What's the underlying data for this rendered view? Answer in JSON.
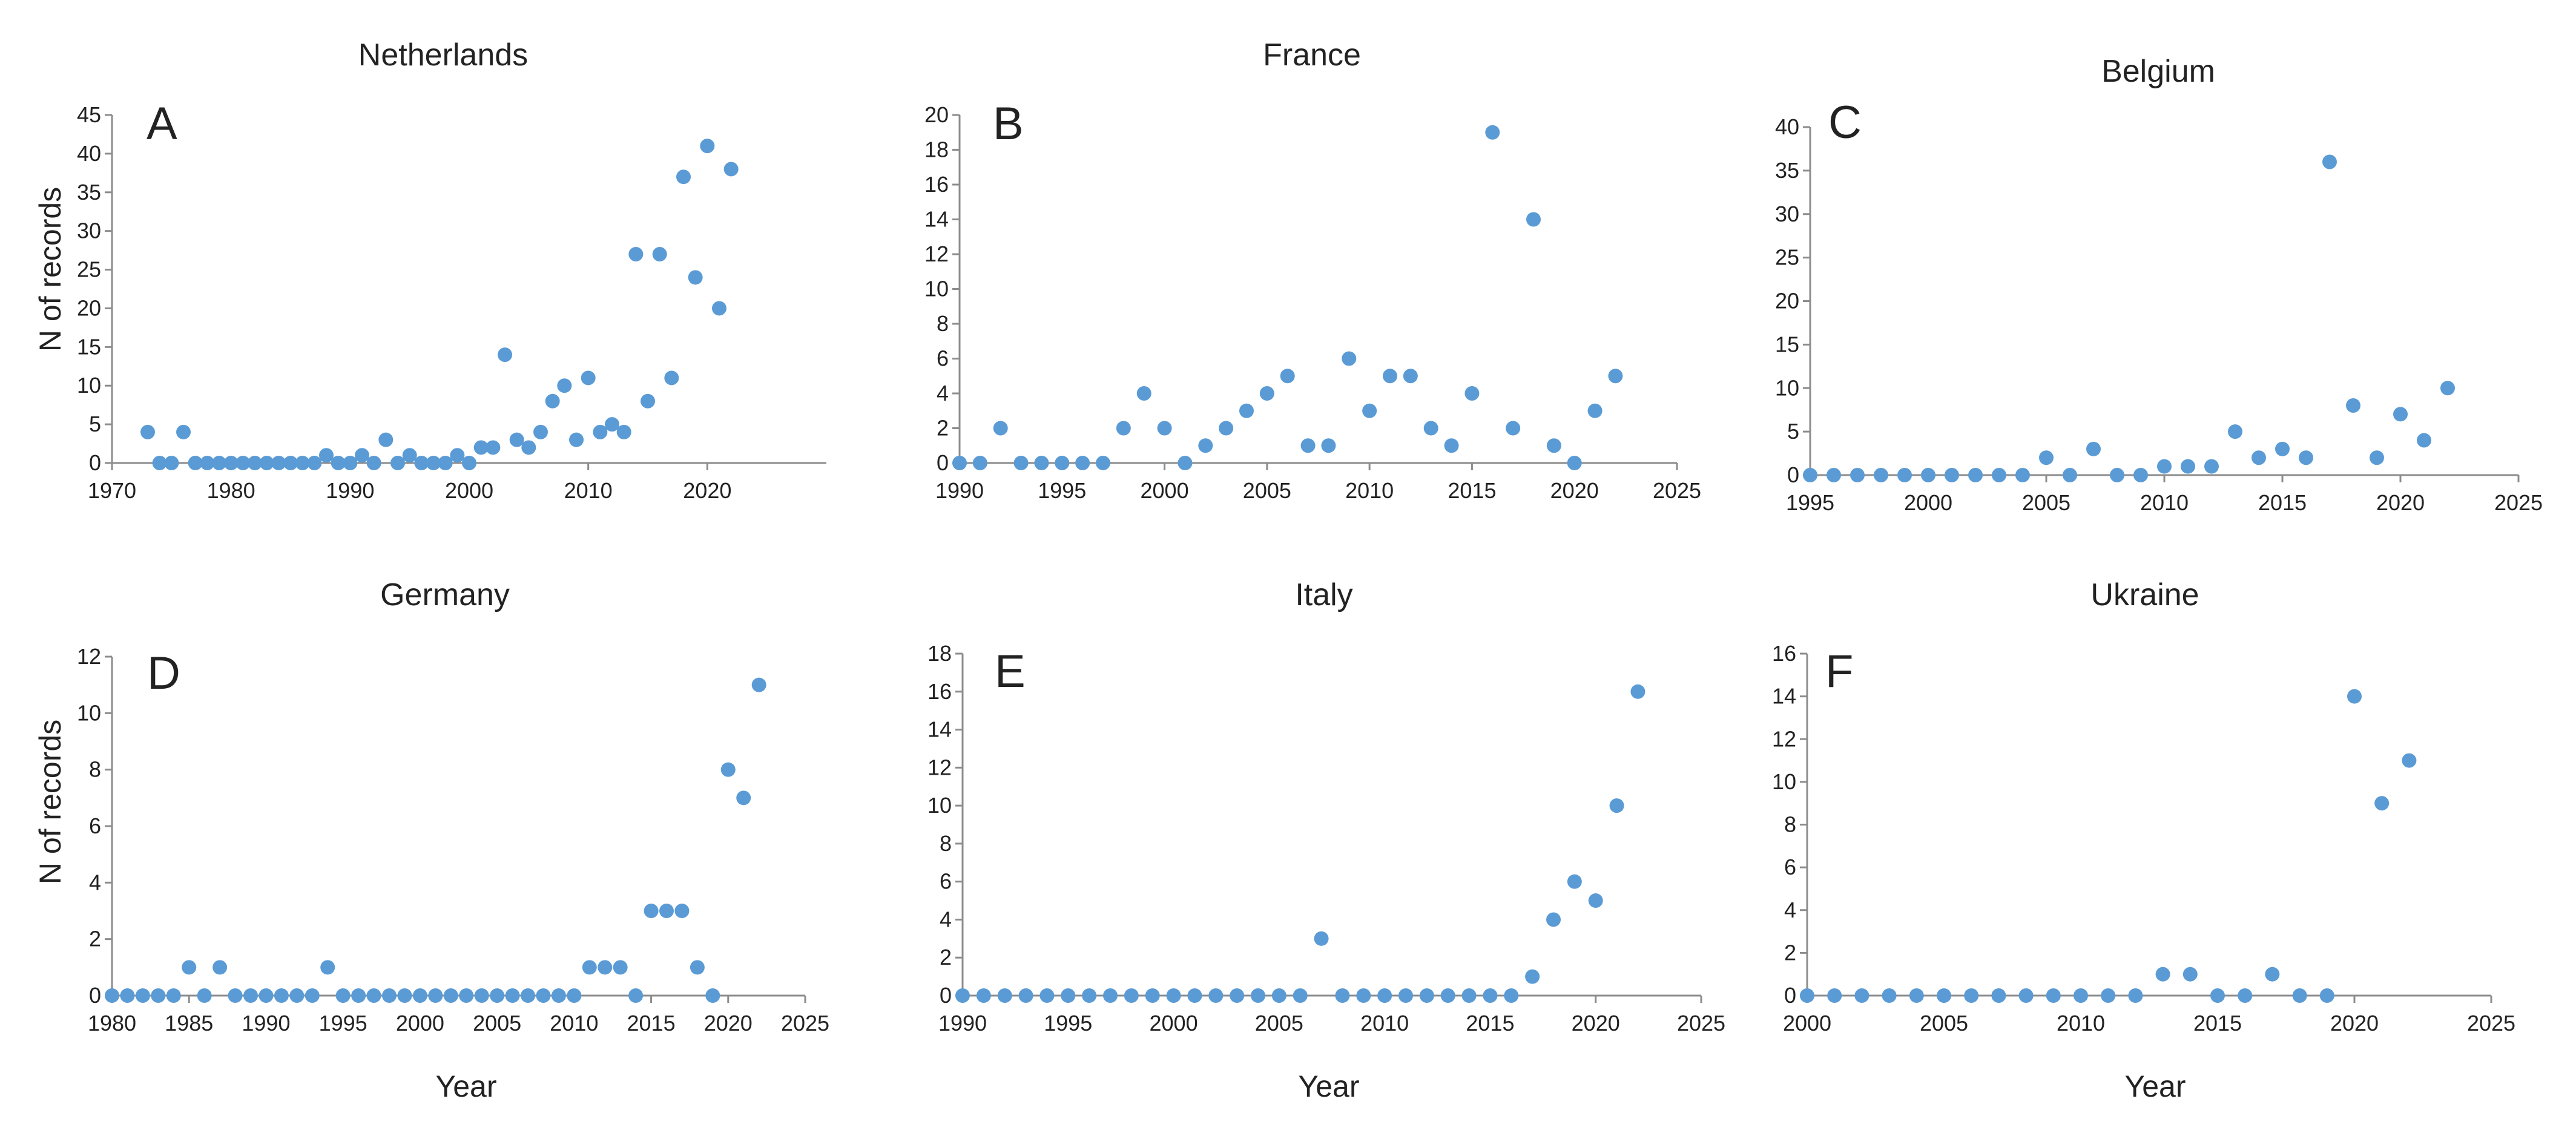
{
  "figure": {
    "y_title": "N of records",
    "x_title": "Year"
  },
  "chart_data": [
    {
      "type": "scatter",
      "panel": "A",
      "title": "Netherlands",
      "xlim": [
        1970,
        2030
      ],
      "xticks": [
        1970,
        1980,
        1990,
        2000,
        2010,
        2020
      ],
      "ylim": [
        0,
        45
      ],
      "yticks": [
        0,
        5,
        10,
        15,
        20,
        25,
        30,
        35,
        40,
        45
      ],
      "color": "#5B9BD5",
      "grid": false,
      "x": [
        1973,
        1974,
        1975,
        1976,
        1977,
        1978,
        1979,
        1980,
        1981,
        1982,
        1983,
        1984,
        1985,
        1986,
        1987,
        1988,
        1989,
        1990,
        1991,
        1992,
        1993,
        1994,
        1995,
        1996,
        1997,
        1998,
        1999,
        2000,
        2001,
        2002,
        2003,
        2004,
        2005,
        2006,
        2007,
        2008,
        2009,
        2010,
        2011,
        2012,
        2013,
        2014,
        2015,
        2016,
        2017,
        2018,
        2019,
        2020,
        2021,
        2022
      ],
      "y": [
        4,
        0,
        0,
        4,
        0,
        0,
        0,
        0,
        0,
        0,
        0,
        0,
        0,
        0,
        0,
        1,
        0,
        0,
        1,
        0,
        3,
        0,
        1,
        0,
        0,
        0,
        1,
        0,
        2,
        2,
        14,
        3,
        2,
        4,
        8,
        10,
        3,
        11,
        4,
        5,
        4,
        27,
        8,
        27,
        11,
        37,
        24,
        41,
        20,
        38
      ]
    },
    {
      "type": "scatter",
      "panel": "B",
      "title": "France",
      "xlim": [
        1990,
        2025
      ],
      "xticks": [
        1990,
        1995,
        2000,
        2005,
        2010,
        2015,
        2020,
        2025
      ],
      "ylim": [
        0,
        20
      ],
      "yticks": [
        0,
        2,
        4,
        6,
        8,
        10,
        12,
        14,
        16,
        18,
        20
      ],
      "color": "#5B9BD5",
      "grid": false,
      "x": [
        1990,
        1991,
        1992,
        1993,
        1994,
        1995,
        1996,
        1997,
        1998,
        1999,
        2000,
        2001,
        2002,
        2003,
        2004,
        2005,
        2006,
        2007,
        2008,
        2009,
        2010,
        2011,
        2012,
        2013,
        2014,
        2015,
        2016,
        2017,
        2018,
        2019,
        2020,
        2021,
        2022
      ],
      "y": [
        0,
        0,
        2,
        0,
        0,
        0,
        0,
        0,
        2,
        4,
        2,
        0,
        1,
        2,
        3,
        4,
        5,
        1,
        1,
        6,
        3,
        5,
        5,
        2,
        1,
        4,
        19,
        2,
        14,
        1,
        0,
        3,
        5
      ]
    },
    {
      "type": "scatter",
      "panel": "C",
      "title": "Belgium",
      "xlim": [
        1995,
        2025
      ],
      "xticks": [
        1995,
        2000,
        2005,
        2010,
        2015,
        2020,
        2025
      ],
      "ylim": [
        0,
        40
      ],
      "yticks": [
        0,
        5,
        10,
        15,
        20,
        25,
        30,
        35,
        40
      ],
      "color": "#5B9BD5",
      "grid": false,
      "x": [
        1995,
        1996,
        1997,
        1998,
        1999,
        2000,
        2001,
        2002,
        2003,
        2004,
        2005,
        2006,
        2007,
        2008,
        2009,
        2010,
        2011,
        2012,
        2013,
        2014,
        2015,
        2016,
        2017,
        2018,
        2019,
        2020,
        2021,
        2022
      ],
      "y": [
        0,
        0,
        0,
        0,
        0,
        0,
        0,
        0,
        0,
        0,
        2,
        0,
        3,
        0,
        0,
        1,
        1,
        1,
        5,
        2,
        3,
        2,
        36,
        8,
        2,
        7,
        4,
        10
      ]
    },
    {
      "type": "scatter",
      "panel": "D",
      "title": "Germany",
      "xlim": [
        1980,
        2025
      ],
      "xticks": [
        1980,
        1985,
        1990,
        1995,
        2000,
        2005,
        2010,
        2015,
        2020,
        2025
      ],
      "ylim": [
        0,
        12
      ],
      "yticks": [
        0,
        2,
        4,
        6,
        8,
        10,
        12
      ],
      "color": "#5B9BD5",
      "grid": false,
      "x": [
        1980,
        1981,
        1982,
        1983,
        1984,
        1985,
        1986,
        1987,
        1988,
        1989,
        1990,
        1991,
        1992,
        1993,
        1994,
        1995,
        1996,
        1997,
        1998,
        1999,
        2000,
        2001,
        2002,
        2003,
        2004,
        2005,
        2006,
        2007,
        2008,
        2009,
        2010,
        2011,
        2012,
        2013,
        2014,
        2015,
        2016,
        2017,
        2018,
        2019,
        2020,
        2021,
        2022
      ],
      "y": [
        0,
        0,
        0,
        0,
        0,
        1,
        0,
        1,
        0,
        0,
        0,
        0,
        0,
        0,
        1,
        0,
        0,
        0,
        0,
        0,
        0,
        0,
        0,
        0,
        0,
        0,
        0,
        0,
        0,
        0,
        0,
        1,
        1,
        1,
        0,
        3,
        3,
        3,
        1,
        0,
        8,
        7,
        11
      ]
    },
    {
      "type": "scatter",
      "panel": "E",
      "title": "Italy",
      "xlim": [
        1990,
        2025
      ],
      "xticks": [
        1990,
        1995,
        2000,
        2005,
        2010,
        2015,
        2020,
        2025
      ],
      "ylim": [
        0,
        18
      ],
      "yticks": [
        0,
        2,
        4,
        6,
        8,
        10,
        12,
        14,
        16,
        18
      ],
      "color": "#5B9BD5",
      "grid": false,
      "x": [
        1990,
        1991,
        1992,
        1993,
        1994,
        1995,
        1996,
        1997,
        1998,
        1999,
        2000,
        2001,
        2002,
        2003,
        2004,
        2005,
        2006,
        2007,
        2008,
        2009,
        2010,
        2011,
        2012,
        2013,
        2014,
        2015,
        2016,
        2017,
        2018,
        2019,
        2020,
        2021,
        2022
      ],
      "y": [
        0,
        0,
        0,
        0,
        0,
        0,
        0,
        0,
        0,
        0,
        0,
        0,
        0,
        0,
        0,
        0,
        0,
        3,
        0,
        0,
        0,
        0,
        0,
        0,
        0,
        0,
        0,
        1,
        4,
        6,
        5,
        10,
        16
      ]
    },
    {
      "type": "scatter",
      "panel": "F",
      "title": "Ukraine",
      "xlim": [
        2000,
        2025
      ],
      "xticks": [
        2000,
        2005,
        2010,
        2015,
        2020,
        2025
      ],
      "ylim": [
        0,
        16
      ],
      "yticks": [
        0,
        2,
        4,
        6,
        8,
        10,
        12,
        14,
        16
      ],
      "color": "#5B9BD5",
      "grid": false,
      "x": [
        2000,
        2001,
        2002,
        2003,
        2004,
        2005,
        2006,
        2007,
        2008,
        2009,
        2010,
        2011,
        2012,
        2013,
        2014,
        2015,
        2016,
        2017,
        2018,
        2019,
        2020,
        2021,
        2022
      ],
      "y": [
        0,
        0,
        0,
        0,
        0,
        0,
        0,
        0,
        0,
        0,
        0,
        0,
        0,
        1,
        1,
        0,
        0,
        1,
        0,
        0,
        14,
        9,
        11
      ]
    }
  ]
}
